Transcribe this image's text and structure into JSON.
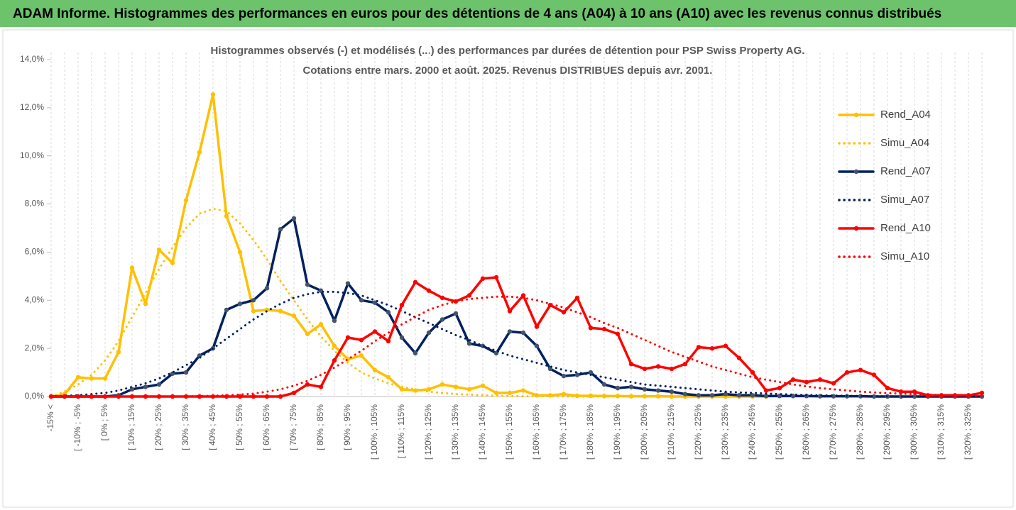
{
  "chart_data": {
    "type": "line",
    "title": "ADAM Informe. Histogrammes des performances en euros pour des détentions de 4 ans (A04) à 10 ans (A10) avec les revenus connus distribués",
    "subtitle": [
      "Histogrammes observés (-) et modélisés (...) des performances par durées de détention pour PSP Swiss Property AG.",
      "Cotations entre mars. 2000 et août. 2025. Revenus DISTRIBUES depuis avr. 2001."
    ],
    "categories": [
      "-15% <",
      null,
      "[ -10% ; -5%",
      null,
      "[ 0% ; 5%",
      null,
      "[ 10% ; 15%",
      null,
      "[ 20% ; 25%",
      null,
      "[ 30% ; 35%",
      null,
      "[ 40% ; 45%",
      null,
      "[ 50% ; 55%",
      null,
      "[ 60% ; 65%",
      null,
      "[ 70% ; 75%",
      null,
      "[ 80% ; 85%",
      null,
      "[ 90% ; 95%",
      null,
      "[ 100% ; 105%",
      null,
      "[ 110% ; 115%",
      null,
      "[ 120% ; 125%",
      null,
      "[ 130% ; 135%",
      null,
      "[ 140% ; 145%",
      null,
      "[ 150% ; 155%",
      null,
      "[ 160% ; 165%",
      null,
      "[ 170% ; 175%",
      null,
      "[ 180% ; 185%",
      null,
      "[ 190% ; 195%",
      null,
      "[ 200% ; 205%",
      null,
      "[ 210% ; 215%",
      null,
      "[ 220% ; 225%",
      null,
      "[ 230% ; 235%",
      null,
      "[ 240% ; 245%",
      null,
      "[ 250% ; 255%",
      null,
      "[ 260% ; 265%",
      null,
      "[ 270% ; 275%",
      null,
      "[ 280% ; 285%",
      null,
      "[ 290% ; 295%",
      null,
      "[ 300% ; 305%",
      null,
      "[ 310% ; 315%",
      null,
      "[ 320% ; 325%",
      null
    ],
    "ylim": [
      0,
      14
    ],
    "yticks": [
      {
        "value": 0,
        "label": "0,0%"
      },
      {
        "value": 2,
        "label": "2,0%"
      },
      {
        "value": 4,
        "label": "4,0%"
      },
      {
        "value": 6,
        "label": "6,0%"
      },
      {
        "value": 8,
        "label": "8,0%"
      },
      {
        "value": 10,
        "label": "10,0%"
      },
      {
        "value": 12,
        "label": "12,0%"
      },
      {
        "value": 14,
        "label": "14,0%"
      }
    ],
    "grid": true,
    "legend": "right",
    "series": [
      {
        "name": "Rend_A04",
        "color": "#ffc000",
        "style": "solid",
        "values": [
          0,
          0.1,
          0.8,
          0.75,
          0.75,
          1.85,
          5.35,
          3.85,
          6.1,
          5.55,
          8.15,
          10.15,
          12.55,
          7.5,
          6.0,
          3.55,
          3.6,
          3.55,
          3.35,
          2.6,
          3.0,
          2.1,
          1.55,
          1.7,
          1.1,
          0.8,
          0.3,
          0.25,
          0.3,
          0.5,
          0.4,
          0.3,
          0.45,
          0.15,
          0.15,
          0.25,
          0.05,
          0.05,
          0.1,
          0.03,
          0.03,
          0.02,
          0.02,
          0.01,
          0.01,
          0.01,
          0,
          0,
          0,
          0,
          0,
          0,
          0,
          0,
          null,
          null,
          null,
          null,
          null,
          null,
          null,
          null,
          null,
          null,
          null,
          null,
          null,
          null,
          null,
          null
        ]
      },
      {
        "name": "Simu_A04",
        "color": "#ffc000",
        "style": "dotted",
        "values": [
          0,
          0.2,
          0.5,
          0.9,
          1.5,
          2.3,
          3.3,
          4.3,
          5.3,
          6.2,
          7.0,
          7.6,
          7.8,
          7.7,
          7.2,
          6.5,
          5.7,
          4.8,
          4.0,
          3.2,
          2.5,
          1.9,
          1.4,
          1.0,
          0.75,
          0.55,
          0.4,
          0.3,
          0.2,
          0.15,
          0.1,
          0.08,
          0.05,
          0.03,
          0.02,
          0.01,
          0.01,
          0.01,
          0,
          0,
          0,
          0,
          0,
          0,
          0,
          0,
          0,
          0,
          0,
          0,
          0,
          0,
          0,
          0,
          null,
          null,
          null,
          null,
          null,
          null,
          null,
          null,
          null,
          null,
          null,
          null,
          null,
          null,
          null,
          null
        ]
      },
      {
        "name": "Rend_A07",
        "color": "#002060",
        "style": "solid",
        "values": [
          0,
          0,
          0,
          0,
          0,
          0.05,
          0.3,
          0.4,
          0.5,
          0.95,
          1.0,
          1.7,
          2.0,
          3.6,
          3.85,
          4.0,
          4.5,
          6.95,
          7.4,
          4.65,
          4.4,
          3.15,
          4.7,
          4.0,
          3.9,
          3.5,
          2.45,
          1.8,
          2.65,
          3.2,
          3.45,
          2.2,
          2.1,
          1.8,
          2.7,
          2.65,
          2.1,
          1.15,
          0.85,
          0.9,
          1.0,
          0.5,
          0.35,
          0.4,
          0.3,
          0.25,
          0.2,
          0.1,
          0.05,
          0.05,
          0.1,
          0.05,
          0.05,
          0.02,
          0.02,
          0.02,
          0.02,
          0.01,
          0.01,
          0.01,
          0.01,
          0,
          0,
          0,
          0,
          0,
          0,
          0,
          0,
          0
        ]
      },
      {
        "name": "Simu_A07",
        "color": "#002060",
        "style": "dotted",
        "values": [
          0,
          0.03,
          0.05,
          0.1,
          0.15,
          0.25,
          0.4,
          0.55,
          0.75,
          1.0,
          1.3,
          1.6,
          2.0,
          2.4,
          2.8,
          3.2,
          3.55,
          3.85,
          4.1,
          4.25,
          4.35,
          4.35,
          4.3,
          4.2,
          4.0,
          3.8,
          3.55,
          3.3,
          3.05,
          2.8,
          2.55,
          2.35,
          2.1,
          1.9,
          1.7,
          1.55,
          1.4,
          1.25,
          1.1,
          1.0,
          0.9,
          0.8,
          0.7,
          0.6,
          0.5,
          0.45,
          0.4,
          0.35,
          0.3,
          0.25,
          0.2,
          0.17,
          0.15,
          0.12,
          0.1,
          0.08,
          0.06,
          0.05,
          0.04,
          0.03,
          0.02,
          0.01,
          0.01,
          0,
          0,
          0,
          0,
          0,
          0,
          0
        ]
      },
      {
        "name": "Rend_A10",
        "color": "#ff0000",
        "style": "solid",
        "values": [
          0,
          0,
          0,
          0,
          0,
          0,
          0,
          0,
          0,
          0,
          0,
          0,
          0,
          0,
          0,
          0,
          0,
          0,
          0.15,
          0.5,
          0.4,
          1.5,
          2.45,
          2.35,
          2.7,
          2.3,
          3.8,
          4.75,
          4.4,
          4.1,
          3.95,
          4.2,
          4.9,
          4.95,
          3.55,
          4.2,
          2.9,
          3.8,
          3.5,
          4.1,
          2.85,
          2.8,
          2.6,
          1.35,
          1.15,
          1.25,
          1.15,
          1.35,
          2.05,
          2.0,
          2.1,
          1.6,
          1.0,
          0.25,
          0.35,
          0.7,
          0.6,
          0.7,
          0.55,
          1.0,
          1.1,
          0.9,
          0.35,
          0.2,
          0.2,
          0.05,
          0.05,
          0.05,
          0.05,
          0.15
        ]
      },
      {
        "name": "Simu_A10",
        "color": "#ff0000",
        "style": "dotted",
        "values": [
          0,
          0,
          0,
          0,
          0,
          0,
          0,
          0,
          0,
          0,
          0,
          0.02,
          0.03,
          0.05,
          0.08,
          0.12,
          0.2,
          0.3,
          0.45,
          0.65,
          0.9,
          1.2,
          1.55,
          1.9,
          2.3,
          2.65,
          3.0,
          3.3,
          3.6,
          3.8,
          3.95,
          4.05,
          4.1,
          4.15,
          4.15,
          4.1,
          4.0,
          3.85,
          3.7,
          3.5,
          3.3,
          3.05,
          2.85,
          2.6,
          2.35,
          2.1,
          1.85,
          1.65,
          1.45,
          1.25,
          1.1,
          0.95,
          0.8,
          0.7,
          0.6,
          0.5,
          0.42,
          0.35,
          0.3,
          0.25,
          0.2,
          0.17,
          0.14,
          0.12,
          0.1,
          0.08,
          0.06,
          0.05,
          0.04,
          0.03
        ]
      }
    ]
  }
}
